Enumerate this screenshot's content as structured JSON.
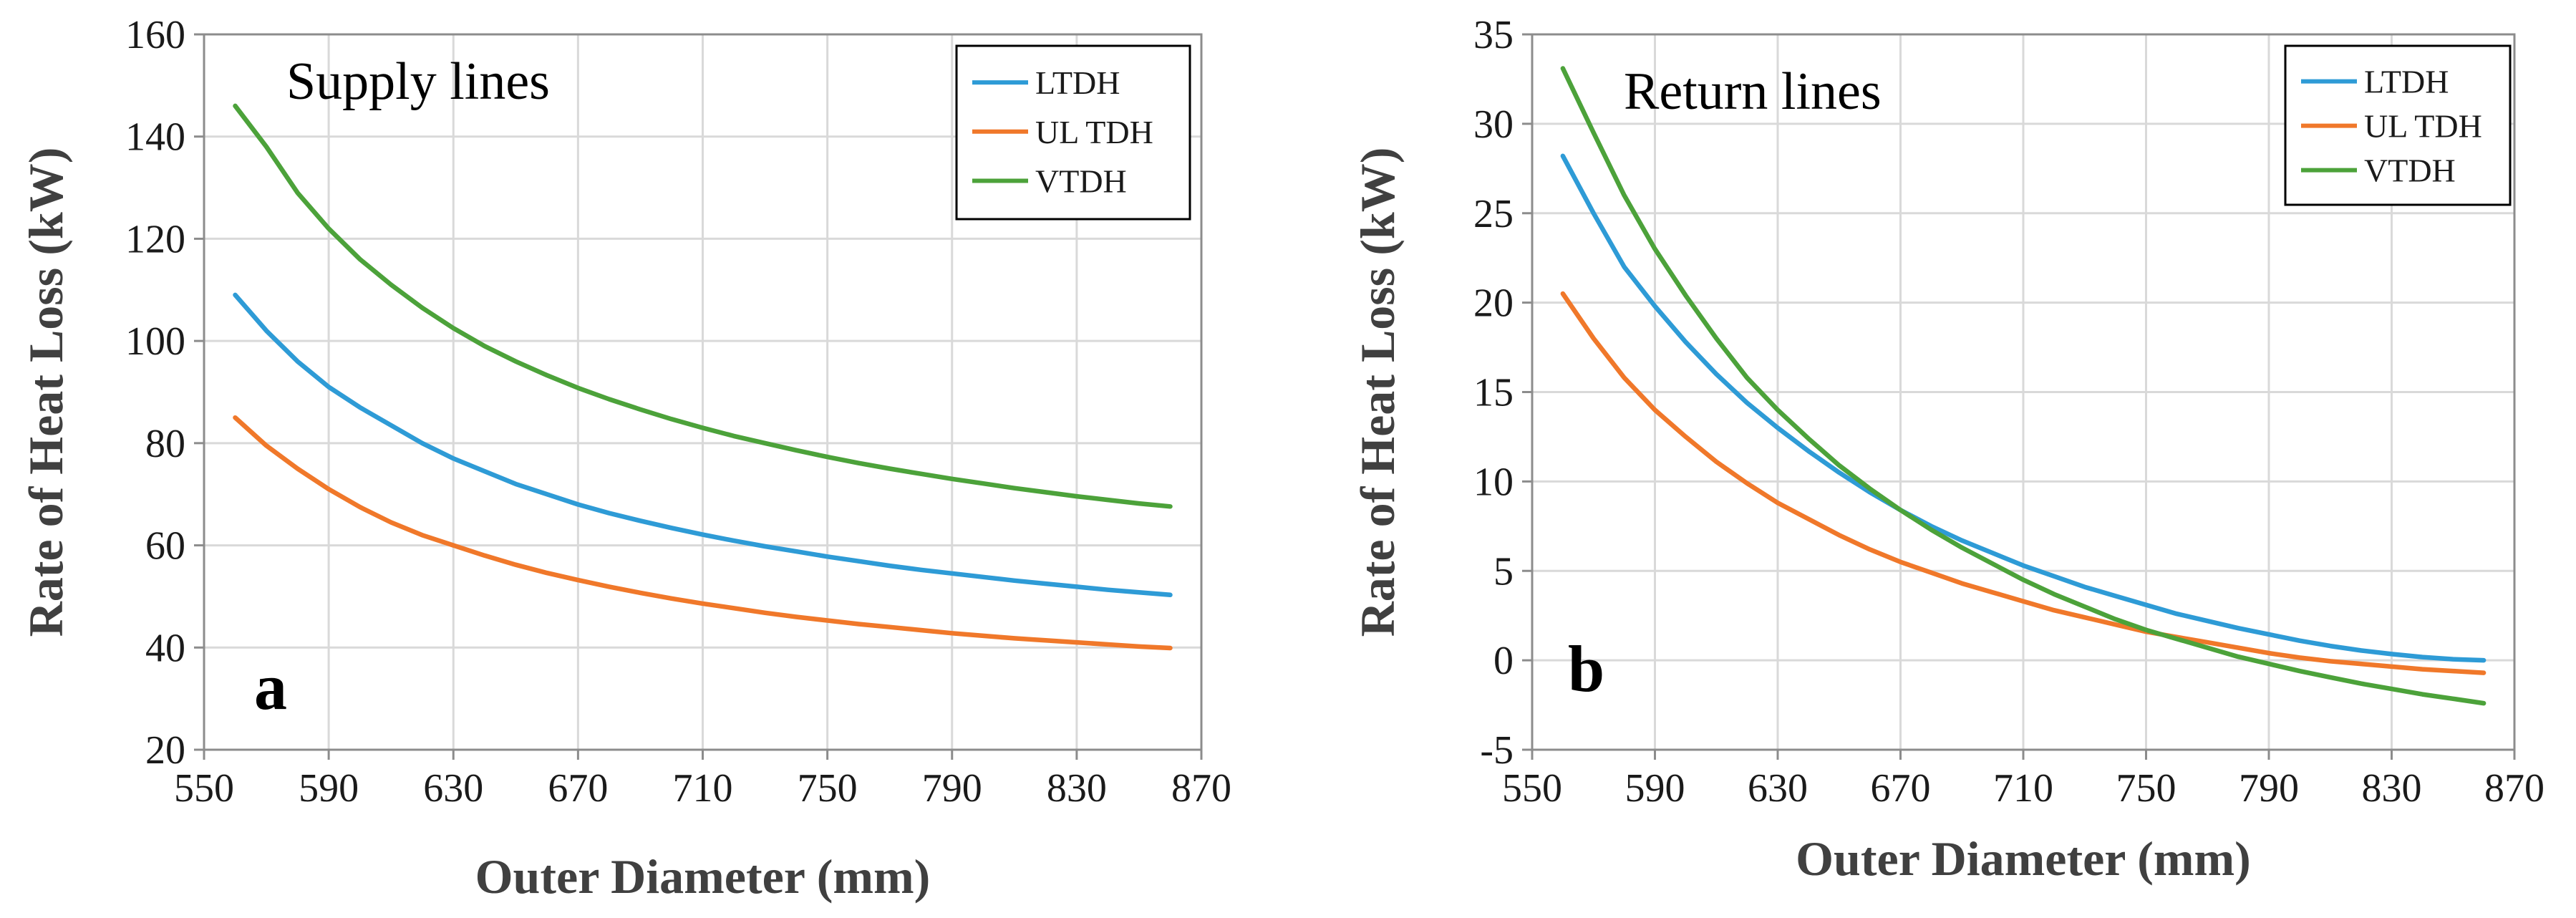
{
  "chart_data": [
    {
      "type": "line",
      "annotation": "Supply lines",
      "panel_label": "a",
      "xlabel": "Outer Diameter (mm)",
      "ylabel": "Rate of Heat Loss (kW)",
      "xlim": [
        550,
        870
      ],
      "ylim": [
        20,
        160
      ],
      "xticks": [
        550,
        590,
        630,
        670,
        710,
        750,
        790,
        830,
        870
      ],
      "yticks": [
        20,
        40,
        60,
        80,
        100,
        120,
        140,
        160
      ],
      "grid": true,
      "legend_position": "top-right",
      "x": [
        560,
        570,
        580,
        590,
        600,
        610,
        620,
        630,
        640,
        650,
        660,
        670,
        680,
        690,
        700,
        710,
        720,
        730,
        740,
        750,
        760,
        770,
        780,
        790,
        800,
        810,
        820,
        830,
        840,
        850,
        860
      ],
      "series": [
        {
          "name": "LTDH",
          "color": "#2e9bd6",
          "values": [
            109,
            102,
            96,
            91,
            87,
            83.5,
            80,
            77,
            74.5,
            72,
            70,
            68,
            66.3,
            64.8,
            63.4,
            62.1,
            60.9,
            59.8,
            58.8,
            57.8,
            56.9,
            56,
            55.2,
            54.5,
            53.8,
            53.1,
            52.5,
            51.9,
            51.3,
            50.8,
            50.3
          ]
        },
        {
          "name": "UL TDH",
          "color": "#f0782a",
          "values": [
            85,
            79.5,
            75,
            71,
            67.5,
            64.5,
            62,
            60,
            58,
            56.2,
            54.6,
            53.2,
            51.9,
            50.7,
            49.6,
            48.6,
            47.7,
            46.8,
            46,
            45.3,
            44.6,
            44,
            43.4,
            42.8,
            42.3,
            41.8,
            41.4,
            41,
            40.6,
            40.2,
            39.9
          ]
        },
        {
          "name": "VTDH",
          "color": "#4ca23a",
          "values": [
            146,
            138,
            129,
            122,
            116,
            111,
            106.5,
            102.5,
            99,
            96,
            93.3,
            90.8,
            88.6,
            86.6,
            84.7,
            83,
            81.4,
            80,
            78.6,
            77.3,
            76.1,
            75,
            74,
            73,
            72.1,
            71.2,
            70.4,
            69.6,
            68.9,
            68.2,
            67.6
          ]
        }
      ]
    },
    {
      "type": "line",
      "annotation": "Return lines",
      "panel_label": "b",
      "xlabel": "Outer Diameter (mm)",
      "ylabel": "Rate of Heat Loss (kW)",
      "xlim": [
        550,
        870
      ],
      "ylim": [
        -5,
        35
      ],
      "xticks": [
        550,
        590,
        630,
        670,
        710,
        750,
        790,
        830,
        870
      ],
      "yticks": [
        -5,
        0,
        5,
        10,
        15,
        20,
        25,
        30,
        35
      ],
      "grid": true,
      "legend_position": "top-right",
      "x": [
        560,
        570,
        580,
        590,
        600,
        610,
        620,
        630,
        640,
        650,
        660,
        670,
        680,
        690,
        700,
        710,
        720,
        730,
        740,
        750,
        760,
        770,
        780,
        790,
        800,
        810,
        820,
        830,
        840,
        850,
        860
      ],
      "series": [
        {
          "name": "LTDH",
          "color": "#2e9bd6",
          "values": [
            28.2,
            25,
            22,
            19.8,
            17.8,
            16,
            14.4,
            13,
            11.7,
            10.5,
            9.4,
            8.4,
            7.5,
            6.7,
            6,
            5.3,
            4.7,
            4.1,
            3.6,
            3.1,
            2.6,
            2.2,
            1.8,
            1.45,
            1.1,
            0.8,
            0.55,
            0.35,
            0.18,
            0.06,
            0.0
          ]
        },
        {
          "name": "UL TDH",
          "color": "#f0782a",
          "values": [
            20.5,
            18,
            15.8,
            14,
            12.5,
            11.1,
            9.9,
            8.8,
            7.9,
            7,
            6.2,
            5.5,
            4.9,
            4.3,
            3.8,
            3.3,
            2.8,
            2.4,
            2,
            1.6,
            1.3,
            1,
            0.7,
            0.4,
            0.15,
            -0.05,
            -0.2,
            -0.35,
            -0.5,
            -0.6,
            -0.7
          ]
        },
        {
          "name": "VTDH",
          "color": "#4ca23a",
          "values": [
            33.1,
            29.5,
            26,
            23,
            20.4,
            18,
            15.8,
            14,
            12.4,
            10.9,
            9.6,
            8.4,
            7.3,
            6.3,
            5.4,
            4.5,
            3.7,
            3,
            2.3,
            1.7,
            1.2,
            0.7,
            0.2,
            -0.2,
            -0.6,
            -0.95,
            -1.3,
            -1.6,
            -1.9,
            -2.15,
            -2.4
          ]
        }
      ]
    }
  ]
}
